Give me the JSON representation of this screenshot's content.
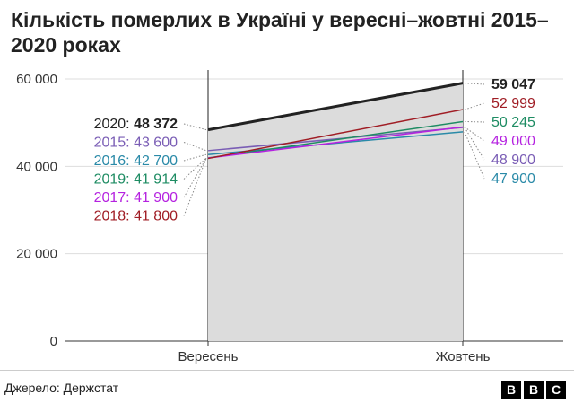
{
  "title": "Кількість  померлих в Україні у вересні–жовтні 2015–2020 роках",
  "source": "Джерело: Держстат",
  "logo": [
    "B",
    "B",
    "C"
  ],
  "chart_data": {
    "type": "line",
    "title": "Кількість  померлих в Україні у вересні–жовтні 2015–2020 роках",
    "categories": [
      "Вересень",
      "Жовтень"
    ],
    "ylim": [
      0,
      60000
    ],
    "yticks": [
      0,
      20000,
      40000,
      60000
    ],
    "ytick_labels": [
      "0",
      "20 000",
      "40 000",
      "60 000"
    ],
    "grid": true,
    "series": [
      {
        "name": "2020",
        "values": [
          48372,
          59047
        ],
        "labels": [
          "48 372",
          "59 047"
        ],
        "color": "#222222",
        "highlight": true
      },
      {
        "name": "2015",
        "values": [
          43600,
          48900
        ],
        "labels": [
          "43 600",
          "48 900"
        ],
        "color": "#7a5db5"
      },
      {
        "name": "2016",
        "values": [
          42700,
          47900
        ],
        "labels": [
          "42 700",
          "47 900"
        ],
        "color": "#2a8aa8"
      },
      {
        "name": "2019",
        "values": [
          41914,
          50245
        ],
        "labels": [
          "41 914",
          "50 245"
        ],
        "color": "#1e8c63"
      },
      {
        "name": "2017",
        "values": [
          41900,
          49000
        ],
        "labels": [
          "41 900",
          "49 000"
        ],
        "color": "#b522e0"
      },
      {
        "name": "2018",
        "values": [
          41800,
          52999
        ],
        "labels": [
          "41 800",
          "52 999"
        ],
        "color": "#a01d25"
      }
    ]
  }
}
